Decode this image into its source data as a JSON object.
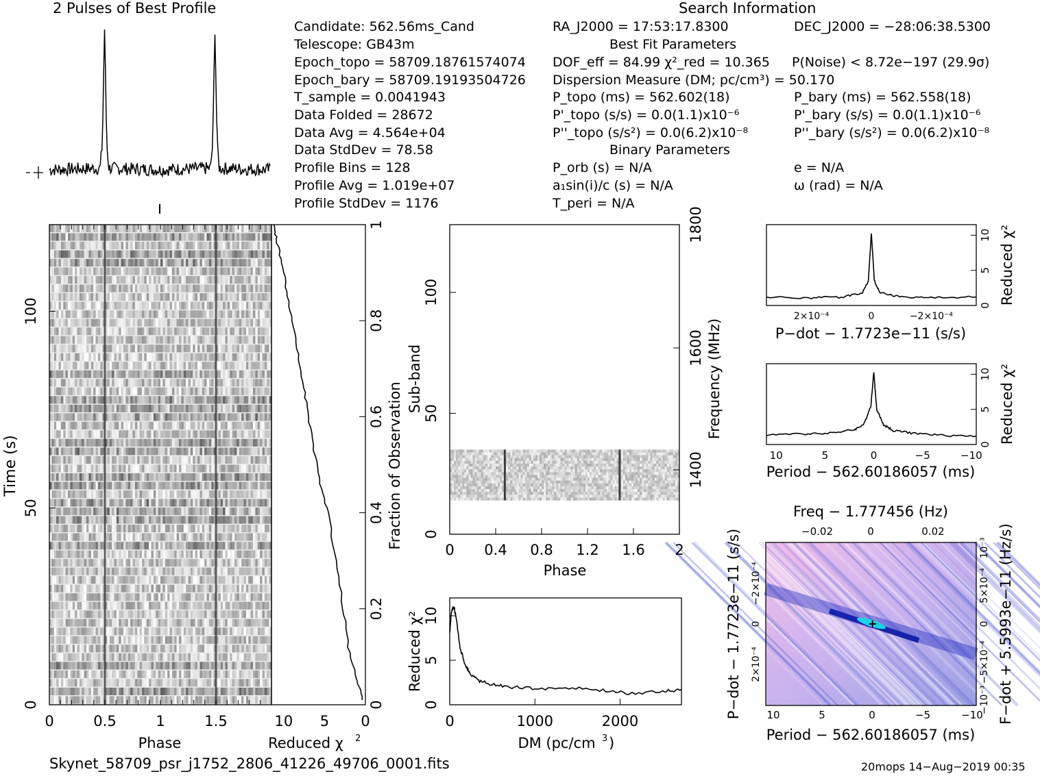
{
  "header": {
    "profile_title": "2 Pulses of Best Profile",
    "search_title": "Search Information",
    "best_fit_title": "Best Fit Parameters",
    "binary_title": "Binary Parameters"
  },
  "candidate_info": [
    "Candidate:  562.56ms_Cand",
    "Telescope:  GB43m",
    "Epoch_topo = 58709.18761574074",
    "Epoch_bary = 58709.19193504726",
    "T_sample      =   0.0041943",
    "Data Folded    =   28672",
    "Data Avg        =   4.564e+04",
    "Data StdDev    =   78.58",
    "Profile Bins     =   128",
    "Profile Avg       =   1.019e+07",
    "Profile StdDev  =   1176"
  ],
  "search_info": {
    "ra": "RA_J2000 = 17:53:17.8300",
    "dec": "DEC_J2000 = −28:06:38.5300",
    "dof": "DOF_eff = 84.99   χ²_red = 10.365",
    "p_noise": "P(Noise) < 8.72e−197   (29.9σ)",
    "dm": "Dispersion Measure (DM; pc/cm³) = 50.170",
    "p_topo": "P_topo (ms) =  562.602(18)",
    "p_bary": "P_bary (ms) =  562.558(18)",
    "pd_topo": "P'_topo (s/s) = 0.0(1.1)x10⁻⁶",
    "pd_bary": "P'_bary (s/s) = 0.0(1.1)x10⁻⁶",
    "pdd_topo": "P''_topo (s/s²) = 0.0(6.2)x10⁻⁸",
    "pdd_bary": "P''_bary (s/s²) = 0.0(6.2)x10⁻⁸",
    "p_orb": "P_orb (s) = N/A",
    "e": "e = N/A",
    "a1": "a₁sin(i)/c (s) = N/A",
    "omega": "ω (rad) = N/A",
    "t_peri": "T_peri = N/A"
  },
  "footer": {
    "filename": "Skynet_58709_psr_j1752_2806_41226_49706_0001.fits",
    "stamp": "20mops 14−Aug−2019 00:35"
  },
  "colors": {
    "line": "#000000",
    "grayscale_dark": "#333333",
    "map_low": "#f4b8e8",
    "map_high": "#0b1aa8"
  },
  "chart_data": [
    {
      "type": "line",
      "title": "2 Pulses of Best Profile",
      "x": [
        0,
        0.46,
        0.48,
        0.5,
        0.52,
        0.54,
        1.0,
        1.46,
        1.48,
        1.5,
        1.52,
        1.54,
        2.0
      ],
      "series": [
        {
          "values": [
            0.02,
            0.03,
            0.2,
            1.0,
            0.2,
            0.03,
            0.02,
            0.03,
            0.2,
            1.0,
            0.2,
            0.03,
            0.02
          ]
        }
      ]
    },
    {
      "type": "heatmap",
      "xlabel": "Phase",
      "ylabel": "Time (s)",
      "x_ticks": [
        "0",
        "0.5",
        "1",
        "1.5"
      ],
      "y_ticks": [
        "0",
        "50",
        "100"
      ],
      "xlim": [
        0,
        2
      ],
      "ylim": [
        0,
        122
      ],
      "pulse_phases": [
        0.5,
        1.5
      ]
    },
    {
      "type": "line",
      "xlabel": "Reduced χ²",
      "ylabel": "Fraction of Observation",
      "x_ticks": [
        "10",
        "5",
        "0"
      ],
      "y_ticks": [
        "0",
        "0.2",
        "0.4",
        "0.6",
        "0.8",
        "1"
      ],
      "xlim": [
        11.5,
        0
      ],
      "ylim": [
        0,
        1
      ],
      "x": [
        0.3,
        1.0,
        2.1,
        2.7,
        3.6,
        4.6,
        5.5,
        6.3,
        7.0,
        7.5,
        8.2,
        9.0,
        9.6,
        10.2,
        10.9,
        11.2
      ],
      "y": [
        0.01,
        0.05,
        0.12,
        0.2,
        0.3,
        0.4,
        0.46,
        0.53,
        0.6,
        0.66,
        0.73,
        0.8,
        0.86,
        0.92,
        0.97,
        1.0
      ]
    },
    {
      "type": "heatmap",
      "xlabel": "Phase",
      "ylabel": "Sub-band",
      "y2label": "Frequency (MHz)",
      "x_ticks": [
        "0",
        "0.4",
        "0.8",
        "1.2",
        "1.6",
        "2"
      ],
      "y_ticks": [
        "0",
        "50",
        "100"
      ],
      "y2_ticks": [
        "1400",
        "1600",
        "1800"
      ],
      "xlim": [
        0,
        2
      ],
      "ylim": [
        0,
        128
      ],
      "band_range": [
        14,
        35
      ],
      "pulse_phases": [
        0.48,
        1.48
      ]
    },
    {
      "type": "line",
      "xlabel": "DM (pc/cm³)",
      "ylabel": "Reduced χ²",
      "x_ticks": [
        "0",
        "1000",
        "2000"
      ],
      "y_ticks": [
        "0",
        "5",
        "10"
      ],
      "xlim": [
        0,
        2720
      ],
      "ylim": [
        0,
        12
      ],
      "x": [
        0,
        20,
        50,
        80,
        120,
        180,
        250,
        350,
        500,
        700,
        1000,
        1400,
        1800,
        2100,
        2500,
        2720
      ],
      "y": [
        8,
        10.5,
        11,
        9.5,
        6.5,
        4.5,
        3.4,
        2.7,
        2.3,
        2.0,
        1.8,
        1.9,
        1.6,
        1.3,
        1.5,
        1.7
      ]
    },
    {
      "type": "line",
      "xlabel": "P−dot − 1.7723e−11 (s/s)",
      "ylabel": "Reduced χ²",
      "x_ticks": [
        "2×10⁻⁴",
        "0",
        "−2×10⁻⁴"
      ],
      "y_ticks": [
        "0",
        "5",
        "10"
      ],
      "xlim": [
        0.00035,
        -0.00035
      ],
      "ylim": [
        0,
        11.5
      ],
      "x": [
        0.00035,
        0.0002,
        0.0001,
        3e-05,
        1e-05,
        0.0,
        -1e-05,
        -3e-05,
        -0.0001,
        -0.0002,
        -0.00035
      ],
      "y": [
        1.2,
        1.1,
        1.2,
        1.8,
        3.5,
        10.3,
        3.5,
        1.8,
        1.2,
        1.1,
        1.2
      ]
    },
    {
      "type": "line",
      "xlabel": "Period − 562.60186057 (ms)",
      "ylabel": "Reduced χ²",
      "x_ticks": [
        "10",
        "5",
        "0",
        "−5",
        "−10"
      ],
      "y_ticks": [
        "0",
        "5",
        "10"
      ],
      "xlim": [
        11,
        -10.5
      ],
      "ylim": [
        0,
        11.5
      ],
      "x": [
        11,
        7,
        4,
        2,
        1,
        0.3,
        0,
        -0.3,
        -1,
        -2,
        -4,
        -7,
        -10.5
      ],
      "y": [
        1.4,
        1.5,
        1.7,
        2.1,
        2.9,
        5.5,
        10.3,
        5.0,
        2.8,
        2.0,
        1.6,
        1.3,
        1.2
      ]
    },
    {
      "type": "heatmap",
      "title": "Freq − 1.777456 (Hz)",
      "xlabel": "Period − 562.60186057 (ms)",
      "ylabel": "P−dot − 1.7723e−11 (s/s)",
      "y2label": "F−dot + 5.5993e−11 (Hz/s)",
      "x_ticks": [
        "10",
        "5",
        "0",
        "−5",
        "−10"
      ],
      "x2_ticks": [
        "−0.02",
        "0",
        "0.02"
      ],
      "y_ticks": [
        "−2×10⁻⁴",
        "0",
        "2×10⁻⁴"
      ],
      "y2_ticks": [
        "10⁻³",
        "5×10⁻⁴",
        "0",
        "−5×10⁻⁴",
        "−10⁻³"
      ],
      "peak": [
        0,
        0
      ]
    }
  ]
}
